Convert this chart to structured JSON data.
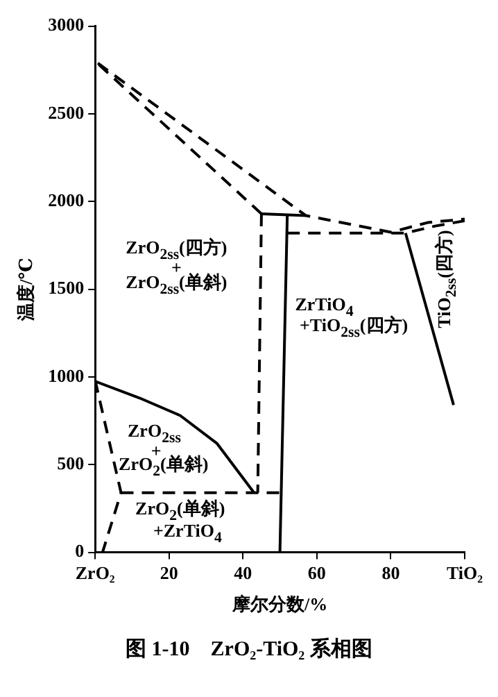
{
  "chart_data": {
    "type": "line",
    "title": "图 1-10　ZrO₂-TiO₂ 系相图",
    "xlabel": "摩尔分数/%",
    "ylabel": "温度/℃",
    "xlim": [
      0,
      100
    ],
    "ylim": [
      0,
      3000
    ],
    "xticks": [
      {
        "value": 0,
        "label": "ZrO₂"
      },
      20,
      40,
      60,
      80,
      {
        "value": 100,
        "label": "TiO₂"
      }
    ],
    "yticks": [
      0,
      500,
      1000,
      1500,
      2000,
      2500,
      3000
    ],
    "grid": false,
    "legend": false,
    "marker": "none",
    "series": [
      {
        "color": "#000000",
        "line_style": "dashed",
        "x": [
          45,
          0,
          57,
          80,
          90,
          100
        ],
        "values": [
          1930,
          2800,
          1920,
          1825,
          1880,
          1900
        ]
      },
      {
        "color": "#000000",
        "line_style": "solid",
        "x": [
          45,
          57
        ],
        "values": [
          1930,
          1920
        ]
      },
      {
        "color": "#000000",
        "line_style": "dashed",
        "x": [
          45,
          44
        ],
        "values": [
          1930,
          340
        ]
      },
      {
        "color": "#000000",
        "line_style": "solid",
        "x": [
          52,
          50
        ],
        "values": [
          1930,
          0
        ]
      },
      {
        "color": "#000000",
        "line_style": "dashed",
        "x": [
          52,
          84,
          92,
          100
        ],
        "values": [
          1820,
          1820,
          1860,
          1890
        ]
      },
      {
        "color": "#000000",
        "line_style": "solid",
        "x": [
          84,
          97
        ],
        "values": [
          1820,
          840
        ]
      },
      {
        "color": "#000000",
        "line_style": "solid",
        "x": [
          0,
          12,
          23,
          33,
          43
        ],
        "values": [
          975,
          880,
          780,
          620,
          340
        ]
      },
      {
        "color": "#000000",
        "line_style": "dashed",
        "x": [
          7,
          50
        ],
        "values": [
          340,
          340
        ]
      },
      {
        "color": "#000000",
        "line_style": "dashed",
        "x": [
          0,
          7,
          2
        ],
        "values": [
          980,
          340,
          0
        ]
      }
    ],
    "annotations": [
      "ZrO$_{2ss}$(四方)",
      "+",
      "ZrO$_{2ss}$(单斜)",
      "ZrTiO$_{4}$",
      "+TiO$_{2ss}$(四方)",
      "TiO$_{2ss}$(四方)",
      "ZrO$_{2ss}$",
      "+",
      "ZrO$_{2}$(单斜)",
      "ZrO$_{2}$(单斜)",
      "+ZrTiO$_{4}$"
    ]
  }
}
